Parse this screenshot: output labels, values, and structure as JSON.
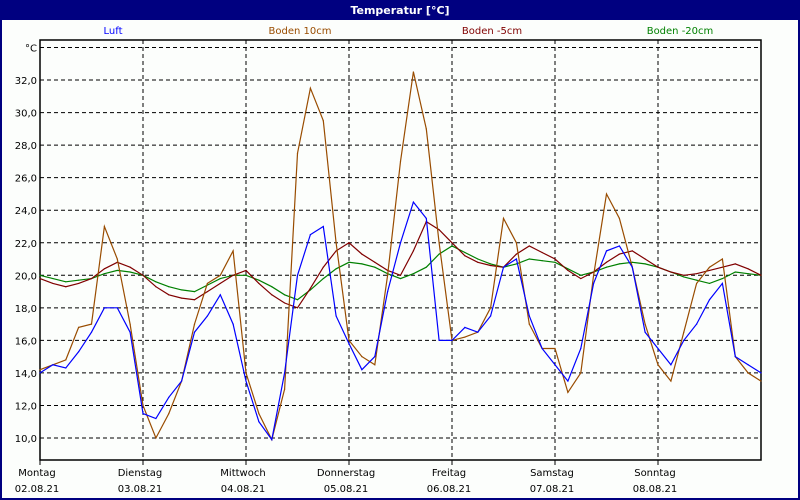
{
  "window": {
    "title": "Temperatur [°C]"
  },
  "chart_data": {
    "type": "line",
    "title": "Temperatur [°C]",
    "ylabel": "°C",
    "ylim": [
      8.6,
      34.5
    ],
    "yticks": [
      "10,0",
      "12,0",
      "14,0",
      "16,0",
      "18,0",
      "20,0",
      "22,0",
      "24,0",
      "26,0",
      "28,0",
      "30,0",
      "32,0"
    ],
    "grid": true,
    "legend_position": "top",
    "xtick_labels": [
      {
        "day": "Montag",
        "date": "02.08.21"
      },
      {
        "day": "Dienstag",
        "date": "03.08.21"
      },
      {
        "day": "Mittwoch",
        "date": "04.08.21"
      },
      {
        "day": "Donnerstag",
        "date": "05.08.21"
      },
      {
        "day": "Freitag",
        "date": "06.08.21"
      },
      {
        "day": "Samstag",
        "date": "07.08.21"
      },
      {
        "day": "Sonntag",
        "date": "08.08.21"
      }
    ],
    "x": [
      "02.08.21 00:00",
      "02.08.21 03:00",
      "02.08.21 06:00",
      "02.08.21 09:00",
      "02.08.21 12:00",
      "02.08.21 15:00",
      "02.08.21 18:00",
      "02.08.21 21:00",
      "03.08.21 00:00",
      "03.08.21 03:00",
      "03.08.21 06:00",
      "03.08.21 09:00",
      "03.08.21 12:00",
      "03.08.21 15:00",
      "03.08.21 18:00",
      "03.08.21 21:00",
      "04.08.21 00:00",
      "04.08.21 03:00",
      "04.08.21 06:00",
      "04.08.21 09:00",
      "04.08.21 12:00",
      "04.08.21 15:00",
      "04.08.21 18:00",
      "04.08.21 21:00",
      "05.08.21 00:00",
      "05.08.21 03:00",
      "05.08.21 06:00",
      "05.08.21 09:00",
      "05.08.21 12:00",
      "05.08.21 15:00",
      "05.08.21 18:00",
      "05.08.21 21:00",
      "06.08.21 00:00",
      "06.08.21 03:00",
      "06.08.21 06:00",
      "06.08.21 09:00",
      "06.08.21 12:00",
      "06.08.21 15:00",
      "06.08.21 18:00",
      "06.08.21 21:00",
      "07.08.21 00:00",
      "07.08.21 03:00",
      "07.08.21 06:00",
      "07.08.21 09:00",
      "07.08.21 12:00",
      "07.08.21 15:00",
      "07.08.21 18:00",
      "07.08.21 21:00",
      "08.08.21 00:00",
      "08.08.21 03:00",
      "08.08.21 06:00",
      "08.08.21 09:00",
      "08.08.21 12:00",
      "08.08.21 15:00",
      "08.08.21 18:00",
      "08.08.21 21:00",
      "09.08.21 00:00"
    ],
    "series": [
      {
        "name": "Luft",
        "color": "#0000ff",
        "values": [
          14.0,
          14.5,
          14.3,
          15.3,
          16.5,
          18.0,
          18.0,
          16.5,
          11.5,
          11.2,
          12.5,
          13.5,
          16.5,
          17.5,
          18.8,
          17.0,
          13.5,
          11.0,
          9.9,
          14.0,
          20.0,
          22.5,
          23.0,
          17.5,
          15.8,
          14.2,
          15.0,
          19.0,
          22.0,
          24.5,
          23.5,
          16.0,
          16.0,
          16.8,
          16.5,
          17.5,
          20.5,
          21.0,
          17.5,
          15.5,
          14.5,
          13.5,
          15.5,
          19.5,
          21.5,
          21.8,
          20.5,
          16.5,
          15.5,
          14.5,
          16.0,
          17.0,
          18.5,
          19.5,
          15.0,
          14.5,
          14.0
        ]
      },
      {
        "name": "Boden 10cm",
        "color": "#994c00",
        "values": [
          14.2,
          14.5,
          14.8,
          16.8,
          17.0,
          23.0,
          21.0,
          17.0,
          12.0,
          10.0,
          11.5,
          13.5,
          17.0,
          19.5,
          20.0,
          21.5,
          14.0,
          11.5,
          9.9,
          13.0,
          27.5,
          31.5,
          29.5,
          22.0,
          16.0,
          15.0,
          14.5,
          20.0,
          27.0,
          32.5,
          29.0,
          22.0,
          16.0,
          16.2,
          16.5,
          18.0,
          23.5,
          22.0,
          17.0,
          15.5,
          15.5,
          12.8,
          14.0,
          20.0,
          25.0,
          23.5,
          20.5,
          17.0,
          14.5,
          13.5,
          16.5,
          19.5,
          20.5,
          21.0,
          15.0,
          14.0,
          13.5
        ]
      },
      {
        "name": "Boden -5cm",
        "color": "#800000",
        "values": [
          19.8,
          19.5,
          19.3,
          19.5,
          19.8,
          20.4,
          20.8,
          20.5,
          20.0,
          19.3,
          18.8,
          18.6,
          18.5,
          19.0,
          19.5,
          20.0,
          20.3,
          19.5,
          18.8,
          18.3,
          18.0,
          19.2,
          20.5,
          21.5,
          22.0,
          21.3,
          20.8,
          20.3,
          20.0,
          21.5,
          23.3,
          22.8,
          22.0,
          21.2,
          20.8,
          20.6,
          20.5,
          21.3,
          21.8,
          21.4,
          21.0,
          20.3,
          19.8,
          20.2,
          20.8,
          21.3,
          21.5,
          21.0,
          20.5,
          20.2,
          20.0,
          20.1,
          20.3,
          20.5,
          20.7,
          20.4,
          20.0
        ]
      },
      {
        "name": "Boden -20cm",
        "color": "#008000",
        "values": [
          20.0,
          19.8,
          19.6,
          19.7,
          19.8,
          20.1,
          20.3,
          20.2,
          20.0,
          19.6,
          19.3,
          19.1,
          19.0,
          19.4,
          19.8,
          20.0,
          20.0,
          19.7,
          19.3,
          18.8,
          18.5,
          19.1,
          19.8,
          20.4,
          20.8,
          20.7,
          20.5,
          20.1,
          19.8,
          20.1,
          20.5,
          21.3,
          21.8,
          21.4,
          21.0,
          20.7,
          20.5,
          20.7,
          21.0,
          20.9,
          20.8,
          20.4,
          20.0,
          20.2,
          20.5,
          20.7,
          20.8,
          20.7,
          20.5,
          20.2,
          19.9,
          19.7,
          19.5,
          19.8,
          20.2,
          20.1,
          20.0
        ]
      }
    ]
  }
}
